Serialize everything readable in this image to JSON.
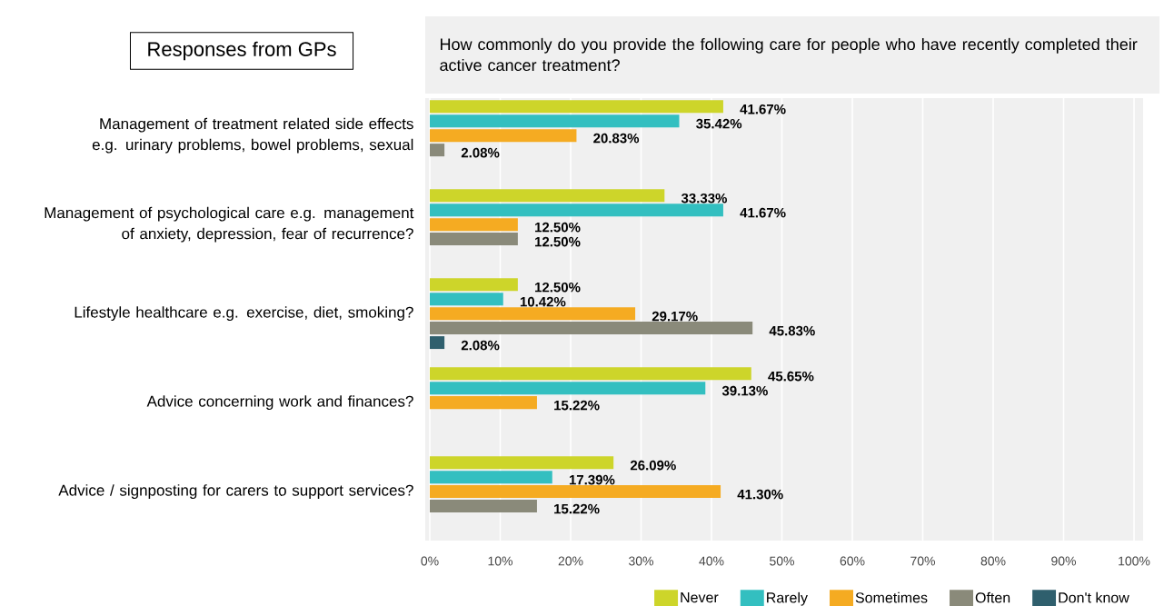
{
  "chart_data": {
    "type": "bar",
    "orientation": "horizontal",
    "title": "How commonly do you provide the following care for people who have recently completed their active cancer treatment?",
    "annotations": [
      "Responses from GPs"
    ],
    "categories": [
      "Management of treatment related side effects e.g. urinary problems, bowel problems, sexual",
      "Management of psychological care e.g. management of anxiety, depression, fear of recurrence?",
      "Lifestyle healthcare e.g. exercise, diet, smoking?",
      "Advice concerning work and finances?",
      "Advice / signposting for carers to support services?"
    ],
    "series": [
      {
        "name": "Never",
        "color": "#cdd52a",
        "values": [
          41.67,
          33.33,
          12.5,
          45.65,
          26.09
        ],
        "value_labels": [
          "41.67%",
          "33.33%",
          "12.50%",
          "45.65%",
          "26.09%"
        ]
      },
      {
        "name": "Rarely",
        "color": "#33bfc0",
        "values": [
          35.42,
          41.67,
          10.42,
          39.13,
          17.39
        ],
        "value_labels": [
          "35.42%",
          "41.67%",
          "10.42%",
          "39.13%",
          "17.39%"
        ]
      },
      {
        "name": "Sometimes",
        "color": "#f5ab22",
        "values": [
          20.83,
          12.5,
          29.17,
          15.22,
          41.3
        ],
        "value_labels": [
          "20.83%",
          "12.50%",
          "29.17%",
          "15.22%",
          "41.30%"
        ]
      },
      {
        "name": "Often",
        "color": "#8a8a7a",
        "values": [
          2.08,
          12.5,
          45.83,
          null,
          15.22
        ],
        "value_labels": [
          "2.08%",
          "12.50%",
          "45.83%",
          null,
          "15.22%"
        ]
      },
      {
        "name": "Don't know",
        "color": "#2f5f6d",
        "values": [
          null,
          null,
          2.08,
          null,
          null
        ],
        "value_labels": [
          null,
          null,
          "2.08%",
          null,
          null
        ]
      }
    ],
    "xlim": [
      0,
      100
    ],
    "xticks": [
      {
        "value": 0,
        "label": "0%"
      },
      {
        "value": 10,
        "label": "10%"
      },
      {
        "value": 20,
        "label": "20%"
      },
      {
        "value": 30,
        "label": "30%"
      },
      {
        "value": 40,
        "label": "40%"
      },
      {
        "value": 50,
        "label": "50%"
      },
      {
        "value": 60,
        "label": "60%"
      },
      {
        "value": 70,
        "label": "70%"
      },
      {
        "value": 80,
        "label": "80%"
      },
      {
        "value": 90,
        "label": "90%"
      },
      {
        "value": 100,
        "label": "100%"
      }
    ],
    "grid": "x",
    "legend": "bottom"
  }
}
